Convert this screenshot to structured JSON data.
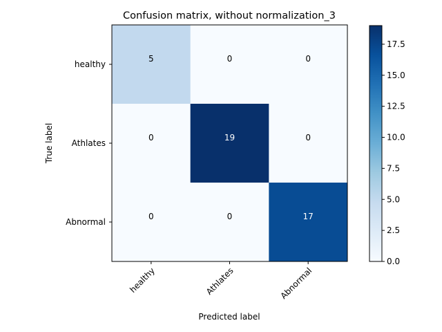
{
  "chart_data": {
    "type": "heatmap",
    "title": "Confusion matrix, without normalization_3",
    "xlabel": "Predicted label",
    "ylabel": "True label",
    "x_categories": [
      "healthy",
      "Athlates",
      "Abnormal"
    ],
    "y_categories": [
      "healthy",
      "Athlates",
      "Abnormal"
    ],
    "matrix": [
      [
        5,
        0,
        0
      ],
      [
        0,
        19,
        0
      ],
      [
        0,
        0,
        17
      ]
    ],
    "colormap": "Blues",
    "colorbar": {
      "min": 0,
      "max": 19,
      "ticks": [
        0.0,
        2.5,
        5.0,
        7.5,
        10.0,
        12.5,
        15.0,
        17.5
      ],
      "tick_labels": [
        "0.0",
        "2.5",
        "5.0",
        "7.5",
        "10.0",
        "12.5",
        "15.0",
        "17.5"
      ]
    },
    "grid": false
  }
}
